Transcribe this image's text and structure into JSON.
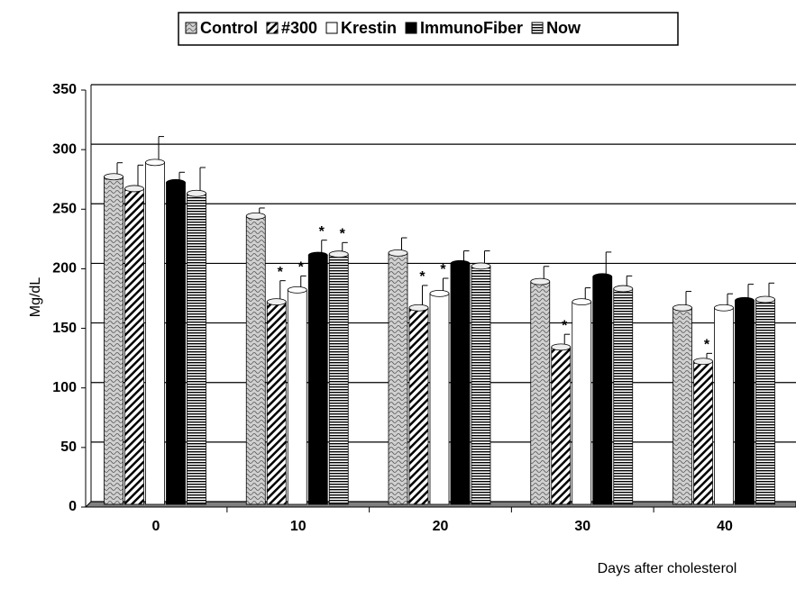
{
  "chart_data": {
    "type": "bar",
    "x_label": "Days after cholesterol",
    "y_label": "Mg/dL",
    "categories": [
      "0",
      "10",
      "20",
      "30",
      "40"
    ],
    "series": [
      {
        "name": "Control",
        "color": "#c8c8c8",
        "pattern": "wave",
        "values": [
          275,
          242,
          211,
          187,
          165
        ],
        "errors": [
          14,
          9,
          15,
          15,
          16
        ],
        "annotations": [
          null,
          null,
          null,
          null,
          null
        ]
      },
      {
        "name": "#300",
        "color": "#ffffff",
        "pattern": "diagonal",
        "values": [
          265,
          170,
          165,
          132,
          120
        ],
        "errors": [
          22,
          20,
          21,
          13,
          9
        ],
        "annotations": [
          null,
          "*",
          "*",
          "*",
          "*"
        ]
      },
      {
        "name": "Krestin",
        "color": "#ffffff",
        "pattern": "solid",
        "values": [
          287,
          180,
          177,
          170,
          165
        ],
        "errors": [
          24,
          14,
          15,
          14,
          14
        ],
        "annotations": [
          null,
          "*",
          "*",
          null,
          null
        ]
      },
      {
        "name": "ImmunoFiber",
        "color": "#000000",
        "pattern": "solid",
        "values": [
          270,
          209,
          202,
          191,
          171
        ],
        "errors": [
          11,
          15,
          13,
          23,
          16
        ],
        "annotations": [
          null,
          "*",
          null,
          null,
          null
        ]
      },
      {
        "name": "Now",
        "color": "#ffffff",
        "pattern": "horizontal",
        "values": [
          261,
          210,
          200,
          181,
          172
        ],
        "errors": [
          24,
          12,
          15,
          13,
          16
        ],
        "annotations": [
          null,
          "*",
          null,
          null,
          null
        ]
      }
    ],
    "ylim": [
      0,
      350
    ],
    "yticks": [
      0,
      50,
      100,
      150,
      200,
      250,
      300,
      350
    ],
    "grid": true,
    "legend": "top"
  }
}
